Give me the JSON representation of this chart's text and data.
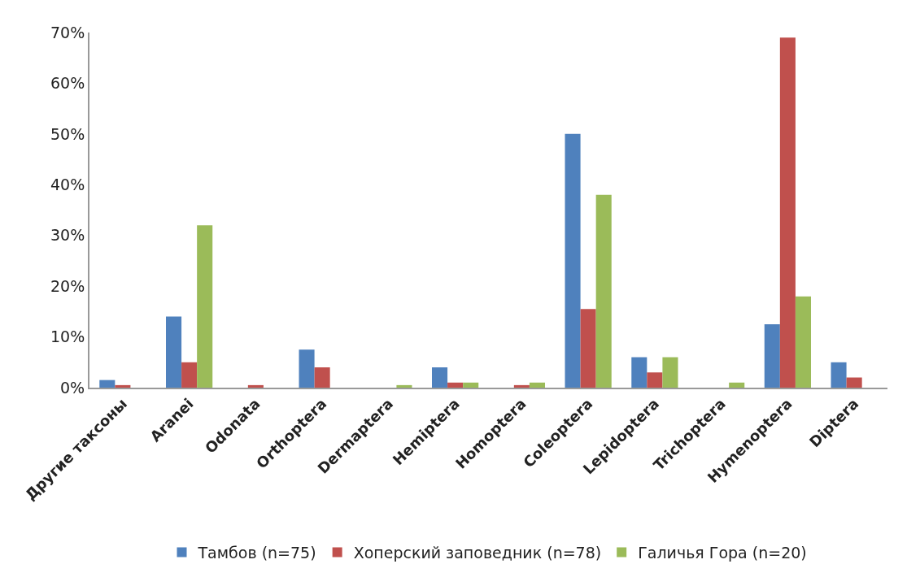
{
  "chart_data": {
    "type": "bar",
    "categories": [
      "Другие таксоны",
      "Aranei",
      "Odonata",
      "Orthoptera",
      "Dermaptera",
      "Hemiptera",
      "Homoptera",
      "Coleoptera",
      "Lepidoptera",
      "Trichoptera",
      "Hymenoptera",
      "Diptera"
    ],
    "series": [
      {
        "name": "Тамбов (n=75)",
        "color": "#4f81bd",
        "values": [
          1.5,
          14,
          0,
          7.5,
          0,
          4,
          0,
          50,
          6,
          0,
          12.5,
          5
        ]
      },
      {
        "name": "Хоперский заповедник (n=78)",
        "color": "#c0504d",
        "values": [
          0.5,
          5,
          0.5,
          4,
          0,
          1,
          0.5,
          15.5,
          3,
          0,
          69,
          2
        ]
      },
      {
        "name": "Галичья Гора (n=20)",
        "color": "#9bbb59",
        "values": [
          0,
          32,
          0,
          0,
          0.5,
          1,
          1,
          38,
          6,
          1,
          18,
          0
        ]
      }
    ],
    "ylim": [
      0,
      70
    ],
    "yticks": [
      {
        "value": 0,
        "label": "0%"
      },
      {
        "value": 10,
        "label": "10%"
      },
      {
        "value": 20,
        "label": "20%"
      },
      {
        "value": 30,
        "label": "30%"
      },
      {
        "value": 40,
        "label": "40%"
      },
      {
        "value": 50,
        "label": "50%"
      },
      {
        "value": 60,
        "label": "60%"
      },
      {
        "value": 70,
        "label": "70%"
      }
    ],
    "grid": false,
    "legend": "bottom"
  }
}
